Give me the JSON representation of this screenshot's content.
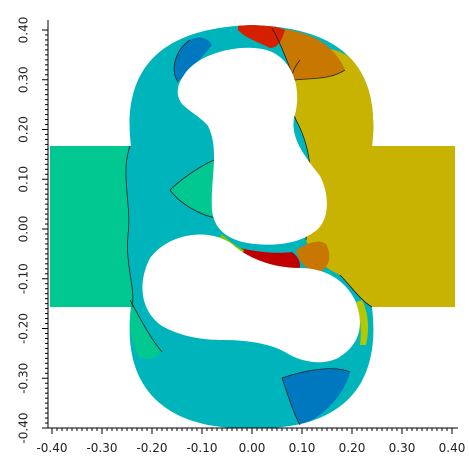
{
  "chart_data": {
    "type": "heatmap",
    "title": "",
    "xlabel": "",
    "ylabel": "",
    "xlim": [
      -0.4,
      0.4
    ],
    "ylim": [
      -0.4,
      0.4
    ],
    "x_ticks": [
      "-0.40",
      "-0.30",
      "-0.20",
      "-0.10",
      "0.00",
      "0.10",
      "0.20",
      "0.30",
      "0.40"
    ],
    "y_ticks": [
      "-0.40",
      "-0.30",
      "-0.20",
      "-0.10",
      "0.00",
      "0.10",
      "0.20",
      "0.30",
      "0.40"
    ],
    "colors": {
      "green": "#00c890",
      "cyan": "#00b4bc",
      "blue": "#0078c0",
      "olive": "#c8b400",
      "orange": "#c87800",
      "red": "#d42000",
      "dark_red": "#c00000",
      "lime": "#78c800",
      "yellow_green": "#b4c800"
    },
    "grid": false,
    "legend": "none"
  }
}
